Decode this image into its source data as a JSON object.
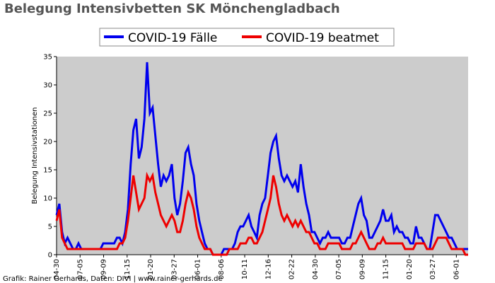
{
  "chart_data": {
    "type": "line",
    "title": "Belegung Intensivbetten SK Mönchengladbach",
    "ylabel": "Belegung Intensivstationen",
    "xlabel": "",
    "ylim": [
      0,
      35
    ],
    "yticks": [
      "0",
      "5",
      "10",
      "15",
      "20",
      "25",
      "30",
      "35"
    ],
    "xticks": [
      "04-30",
      "07-05",
      "09-09",
      "11-15",
      "01-20",
      "03-27",
      "06-01",
      "08-06",
      "10-11",
      "12-16",
      "02-22",
      "04-30",
      "07-05",
      "09-09",
      "11-15",
      "01-20",
      "03-27",
      "06-01"
    ],
    "grid": false,
    "legend_position": "top-center",
    "credit": "Grafik: Rainer Gerhards, Daten: DIVI | www.rainer-gerhards.de",
    "background_color": "#cccccc",
    "series": [
      {
        "name": "COVID-19 Fälle",
        "color": "#0000ee",
        "values": [
          7,
          9,
          4,
          2,
          3,
          2,
          1,
          1,
          2,
          1,
          1,
          1,
          1,
          1,
          1,
          1,
          1,
          2,
          2,
          2,
          2,
          2,
          3,
          3,
          2,
          4,
          8,
          16,
          22,
          24,
          17,
          19,
          24,
          34,
          25,
          26,
          21,
          16,
          12,
          14,
          13,
          14,
          16,
          10,
          7,
          9,
          13,
          18,
          19,
          16,
          14,
          9,
          6,
          4,
          2,
          1,
          1,
          0,
          0,
          0,
          0,
          1,
          1,
          1,
          1,
          2,
          4,
          5,
          5,
          6,
          7,
          5,
          4,
          3,
          7,
          9,
          10,
          14,
          18,
          20,
          21,
          17,
          14,
          13,
          14,
          13,
          12,
          13,
          11,
          16,
          12,
          9,
          7,
          4,
          4,
          3,
          2,
          3,
          3,
          4,
          3,
          3,
          3,
          3,
          2,
          2,
          3,
          3,
          5,
          7,
          9,
          10,
          7,
          6,
          3,
          3,
          4,
          5,
          6,
          8,
          6,
          6,
          7,
          4,
          5,
          4,
          4,
          3,
          3,
          2,
          2,
          5,
          3,
          3,
          2,
          1,
          1,
          4,
          7,
          7,
          6,
          5,
          4,
          3,
          3,
          2,
          1,
          1,
          1,
          1,
          1
        ]
      },
      {
        "name": "COVID-19 beatmet",
        "color": "#ee0000",
        "values": [
          6,
          8,
          3,
          2,
          1,
          1,
          1,
          1,
          1,
          1,
          1,
          1,
          1,
          1,
          1,
          1,
          1,
          1,
          1,
          1,
          1,
          1,
          1,
          2,
          2,
          3,
          6,
          10,
          14,
          11,
          8,
          9,
          10,
          14,
          13,
          14,
          11,
          9,
          7,
          6,
          5,
          6,
          7,
          6,
          4,
          4,
          6,
          9,
          11,
          10,
          8,
          5,
          3,
          2,
          1,
          1,
          1,
          0,
          0,
          0,
          0,
          0,
          0,
          1,
          1,
          1,
          1,
          2,
          2,
          2,
          3,
          3,
          2,
          2,
          3,
          4,
          6,
          8,
          10,
          14,
          12,
          9,
          7,
          6,
          7,
          6,
          5,
          6,
          5,
          6,
          5,
          4,
          4,
          3,
          2,
          2,
          1,
          1,
          1,
          2,
          2,
          2,
          2,
          2,
          1,
          1,
          1,
          1,
          2,
          2,
          3,
          4,
          3,
          2,
          1,
          1,
          1,
          2,
          2,
          3,
          2,
          2,
          2,
          2,
          2,
          2,
          2,
          1,
          1,
          1,
          1,
          2,
          2,
          2,
          2,
          1,
          1,
          1,
          2,
          3,
          3,
          3,
          3,
          2,
          1,
          1,
          1,
          1,
          1,
          0,
          0
        ]
      }
    ]
  }
}
